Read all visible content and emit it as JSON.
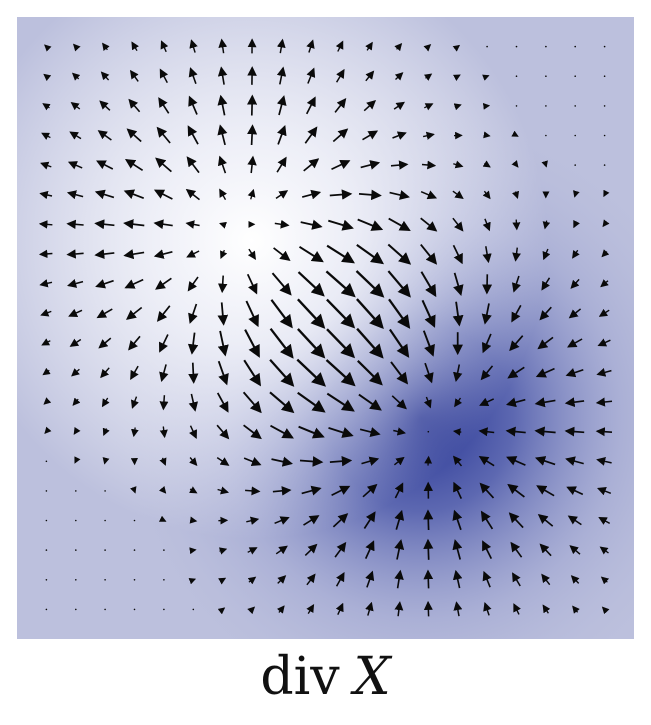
{
  "caption": {
    "operator": "div",
    "variable": "X"
  },
  "colors": {
    "field_low": "#ffffff",
    "field_base": "#bcc0dd",
    "field_high": "#2a3593",
    "arrow": "#0a0a0a"
  }
}
